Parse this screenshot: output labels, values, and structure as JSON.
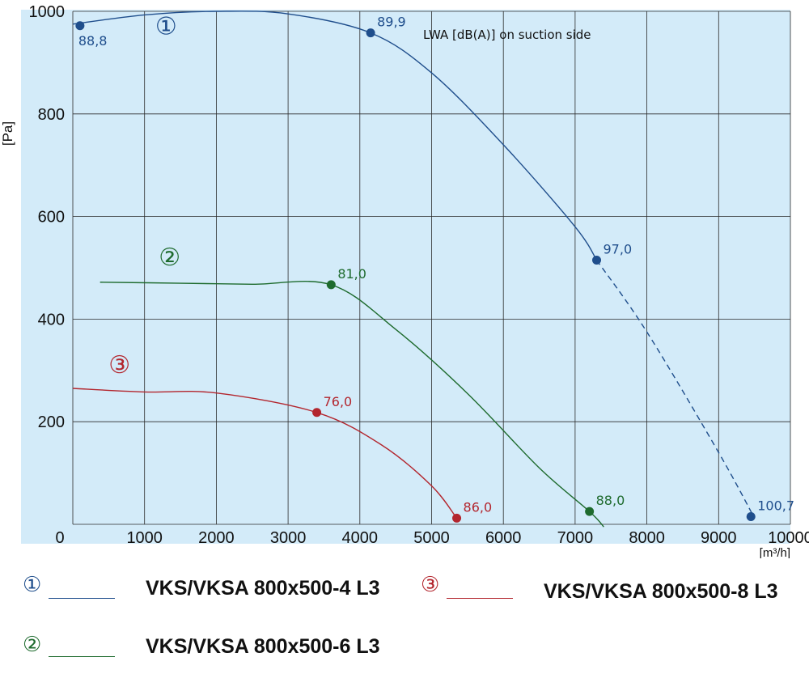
{
  "chart_data": {
    "type": "line",
    "xlabel": "[m³/h]",
    "ylabel": "[Pa]",
    "xlim": [
      0,
      10000
    ],
    "ylim": [
      0,
      1000
    ],
    "x_ticks": [
      "0",
      "1000",
      "2000",
      "3000",
      "4000",
      "5000",
      "6000",
      "7000",
      "8000",
      "9000",
      "10000"
    ],
    "y_ticks": [
      "200",
      "400",
      "600",
      "800",
      "1000"
    ],
    "grid": true,
    "background_color": "#d3ebf9",
    "annotation": "LWA [dB(A)] on suction side",
    "series": [
      {
        "name": "VKS/VKSA 800x500-4 L3",
        "marker": "①",
        "color": "#1f4e8c",
        "curve_solid": [
          [
            0,
            975
          ],
          [
            1000,
            993
          ],
          [
            2000,
            1000
          ],
          [
            3000,
            995
          ],
          [
            4150,
            958
          ],
          [
            5000,
            880
          ],
          [
            6000,
            740
          ],
          [
            7000,
            580
          ],
          [
            7300,
            515
          ]
        ],
        "curve_dashed": [
          [
            7300,
            515
          ],
          [
            8000,
            375
          ],
          [
            9000,
            140
          ],
          [
            9500,
            12
          ]
        ],
        "points": [
          {
            "x": 100,
            "y": 972,
            "label": "88,8"
          },
          {
            "x": 4150,
            "y": 958,
            "label": "89,9"
          },
          {
            "x": 7300,
            "y": 515,
            "label": "97,0"
          },
          {
            "x": 9450,
            "y": 15,
            "label": "100,7"
          }
        ]
      },
      {
        "name": "VKS/VKSA 800x500-6 L3",
        "marker": "②",
        "color": "#1e6b2e",
        "curve_solid": [
          [
            380,
            472
          ],
          [
            1500,
            470
          ],
          [
            2500,
            468
          ],
          [
            3600,
            467
          ],
          [
            4500,
            380
          ],
          [
            5500,
            255
          ],
          [
            6500,
            110
          ],
          [
            7200,
            25
          ],
          [
            7400,
            -5
          ]
        ],
        "curve_dashed": [],
        "points": [
          {
            "x": 3600,
            "y": 467,
            "label": "81,0"
          },
          {
            "x": 7200,
            "y": 25,
            "label": "88,0"
          }
        ]
      },
      {
        "name": "VKS/VKSA 800x500-8 L3",
        "marker": "③",
        "color": "#b3262e",
        "curve_solid": [
          [
            0,
            265
          ],
          [
            1000,
            258
          ],
          [
            2000,
            256
          ],
          [
            3400,
            218
          ],
          [
            4300,
            155
          ],
          [
            5000,
            75
          ],
          [
            5350,
            12
          ]
        ],
        "curve_dashed": [],
        "points": [
          {
            "x": 3400,
            "y": 218,
            "label": "76,0"
          },
          {
            "x": 5350,
            "y": 12,
            "label": "86,0"
          }
        ]
      }
    ]
  },
  "legend": [
    {
      "marker": "①",
      "label": "VKS/VKSA 800x500-4 L3",
      "color": "#1f4e8c"
    },
    {
      "marker": "③",
      "label": "VKS/VKSA 800x500-8 L3",
      "color": "#b3262e"
    },
    {
      "marker": "②",
      "label": "VKS/VKSA 800x500-6 L3",
      "color": "#1e6b2e"
    }
  ]
}
